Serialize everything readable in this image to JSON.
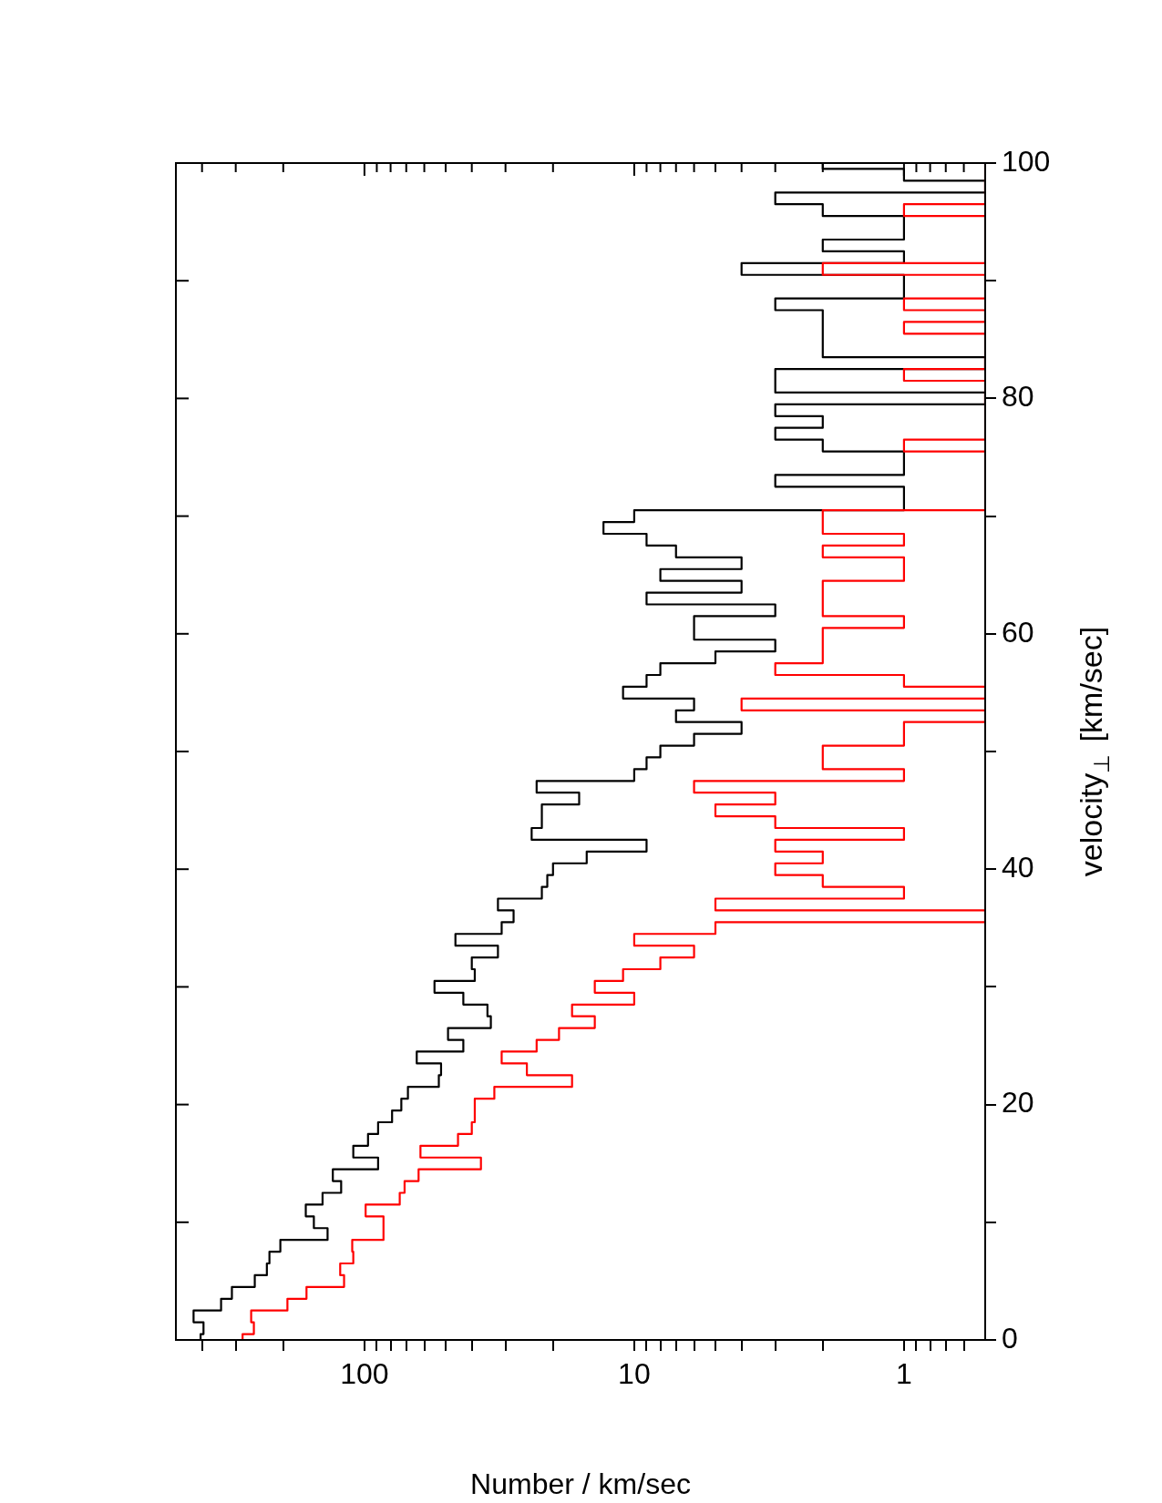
{
  "chart_data": {
    "type": "histogram",
    "orientation": "horizontal",
    "xlabel": "Number / km/sec",
    "ylabel": "velocity$_{⊥}$ [km/sec]",
    "bins": [
      -0.5,
      0.5,
      1.5,
      2.5,
      3.5,
      4.5,
      5.5,
      6.5,
      7.5,
      8.5,
      9.5,
      10.5,
      11.5,
      12.5,
      13.5,
      14.5,
      15.5,
      16.5,
      17.5,
      18.5,
      19.5,
      20.5,
      21.5,
      22.5,
      23.5,
      24.5,
      25.5,
      26.5,
      27.5,
      28.5,
      29.5,
      30.5,
      31.5,
      32.5,
      33.5,
      34.5,
      35.5,
      36.5,
      37.5,
      38.5,
      39.5,
      40.5,
      41.5,
      42.5,
      43.5,
      44.5,
      45.5,
      46.5,
      47.5,
      48.5,
      49.5,
      50.5,
      51.5,
      52.5,
      53.5,
      54.5,
      55.5,
      56.5,
      57.5,
      58.5,
      59.5,
      60.5,
      61.5,
      62.5,
      63.5,
      64.5,
      65.5,
      66.5,
      67.5,
      68.5,
      69.5,
      70.5,
      71.5,
      72.5,
      73.5,
      74.5,
      75.5,
      76.5,
      77.5,
      78.5,
      79.5,
      80.5,
      81.5,
      82.5,
      83.5,
      84.5,
      85.5,
      86.5,
      87.5,
      88.5,
      89.5,
      90.5,
      91.5,
      92.5,
      93.5,
      94.5,
      95.5,
      96.5,
      97.5,
      98.5,
      99.5,
      100.5
    ],
    "series": [
      {
        "color": "#000000",
        "values": [
          405,
          395,
          430,
          340,
          310,
          255,
          230,
          225,
          205,
          137,
          154,
          165,
          143,
          122,
          131,
          89,
          110,
          97,
          89,
          79,
          73,
          69,
          53,
          52,
          64,
          43,
          49,
          34,
          35,
          43,
          55,
          39,
          40,
          32,
          46,
          31,
          28,
          32,
          22,
          21,
          20,
          15,
          9,
          24,
          22,
          22,
          16,
          23,
          10,
          9,
          8,
          6,
          4,
          7,
          6,
          11,
          9,
          8,
          5,
          3,
          6,
          6,
          3,
          9,
          4,
          8,
          4,
          7,
          9,
          13,
          10,
          1,
          1,
          3,
          1,
          1,
          2,
          3,
          2,
          3,
          null,
          3,
          3,
          null,
          2,
          2,
          2,
          2,
          3,
          1,
          1,
          4,
          1,
          2,
          1,
          1,
          2,
          3,
          null,
          1,
          2
        ]
      },
      {
        "color": "#ff0000",
        "values": [
          283,
          257,
          263,
          193,
          164,
          119,
          123,
          110,
          111,
          85,
          85,
          99,
          74,
          71,
          63,
          37,
          62,
          45,
          40,
          39,
          39,
          33,
          17,
          25,
          31,
          23,
          19,
          14,
          17,
          10,
          14,
          11,
          8,
          6,
          10,
          5,
          null,
          5,
          1,
          2,
          3,
          2,
          3,
          1,
          3,
          5,
          3,
          6,
          1,
          2,
          2,
          1,
          1,
          null,
          4,
          null,
          1,
          3,
          2,
          2,
          2,
          1,
          2,
          2,
          2,
          1,
          1,
          2,
          1,
          2,
          2,
          null,
          null,
          null,
          null,
          null,
          1,
          null,
          null,
          null,
          null,
          null,
          1,
          null,
          null,
          null,
          1,
          null,
          1,
          null,
          null,
          2,
          null,
          null,
          null,
          null,
          1,
          null,
          null,
          null,
          null
        ]
      }
    ],
    "xlim": [
      500,
      0.5
    ],
    "ylim": [
      0,
      100
    ],
    "log": "x",
    "xticks": [
      {
        "value": 400,
        "label": null
      },
      {
        "value": 300,
        "label": null
      },
      {
        "value": 200,
        "label": null
      },
      100,
      {
        "value": 90,
        "label": null
      },
      {
        "value": 80,
        "label": null
      },
      {
        "value": 70,
        "label": null
      },
      {
        "value": 60,
        "label": null
      },
      {
        "value": 50,
        "label": null
      },
      {
        "value": 40,
        "label": null
      },
      {
        "value": 30,
        "label": null
      },
      {
        "value": 20,
        "label": null
      },
      10,
      {
        "value": 9,
        "label": null
      },
      {
        "value": 8,
        "label": null
      },
      {
        "value": 7,
        "label": null
      },
      {
        "value": 6,
        "label": null
      },
      {
        "value": 5,
        "label": null
      },
      {
        "value": 4,
        "label": null
      },
      {
        "value": 3,
        "label": null
      },
      {
        "value": 2,
        "label": null
      },
      1,
      {
        "value": 0.9,
        "label": null
      },
      {
        "value": 0.8,
        "label": null
      },
      {
        "value": 0.7,
        "label": null
      },
      {
        "value": 0.6,
        "label": null
      }
    ],
    "yticks": [
      0,
      {
        "value": 10,
        "label": null
      },
      20,
      {
        "value": 30,
        "label": null
      },
      40,
      {
        "value": 50,
        "label": null
      },
      60,
      {
        "value": 70,
        "label": null
      },
      80,
      {
        "value": 90,
        "label": null
      },
      100
    ]
  }
}
